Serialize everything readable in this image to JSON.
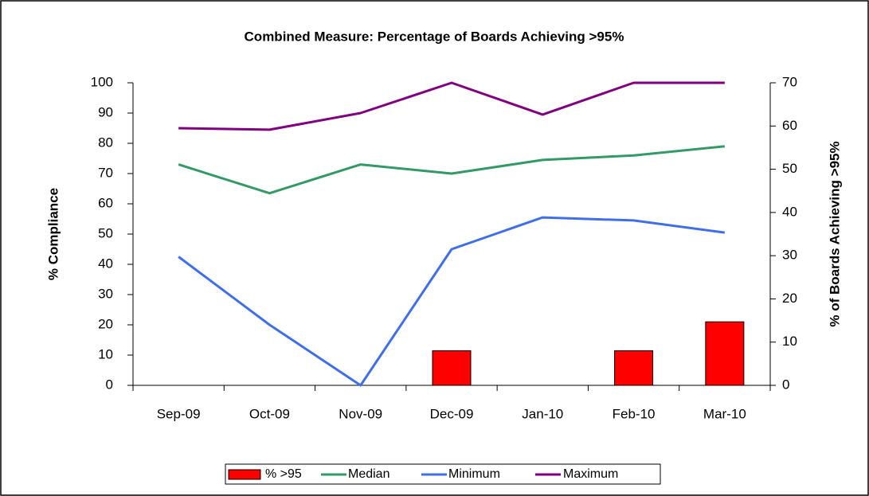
{
  "chart_data": {
    "type": "combo",
    "title": "Combined Measure: Percentage of Boards Achieving >95%",
    "ylabel": "% Compliance",
    "y2label": "% of Boards Achieving >95%",
    "categories": [
      "Sep-09",
      "Oct-09",
      "Nov-09",
      "Dec-09",
      "Jan-10",
      "Feb-10",
      "Mar-10"
    ],
    "ylim": [
      0,
      100
    ],
    "yticks": [
      0,
      10,
      20,
      30,
      40,
      50,
      60,
      70,
      80,
      90,
      100
    ],
    "y2lim": [
      0,
      70
    ],
    "y2ticks": [
      0,
      10,
      20,
      30,
      40,
      50,
      60,
      70
    ],
    "series": [
      {
        "name": "% >95",
        "type": "bar",
        "axis": "y2",
        "color": "#ff0000",
        "values": [
          0,
          0,
          0,
          8,
          0,
          8,
          14.7
        ]
      },
      {
        "name": "Median",
        "type": "line",
        "color": "#339966",
        "values": [
          73,
          63.5,
          73,
          70,
          74.5,
          76,
          79
        ]
      },
      {
        "name": "Minimum",
        "type": "line",
        "color": "#3f6fe8",
        "values": [
          42.5,
          20,
          0,
          45,
          55.5,
          54.5,
          50.5
        ]
      },
      {
        "name": "Maximum",
        "type": "line",
        "color": "#800080",
        "values": [
          85,
          84.5,
          90,
          100,
          89.5,
          100,
          100
        ]
      }
    ]
  }
}
